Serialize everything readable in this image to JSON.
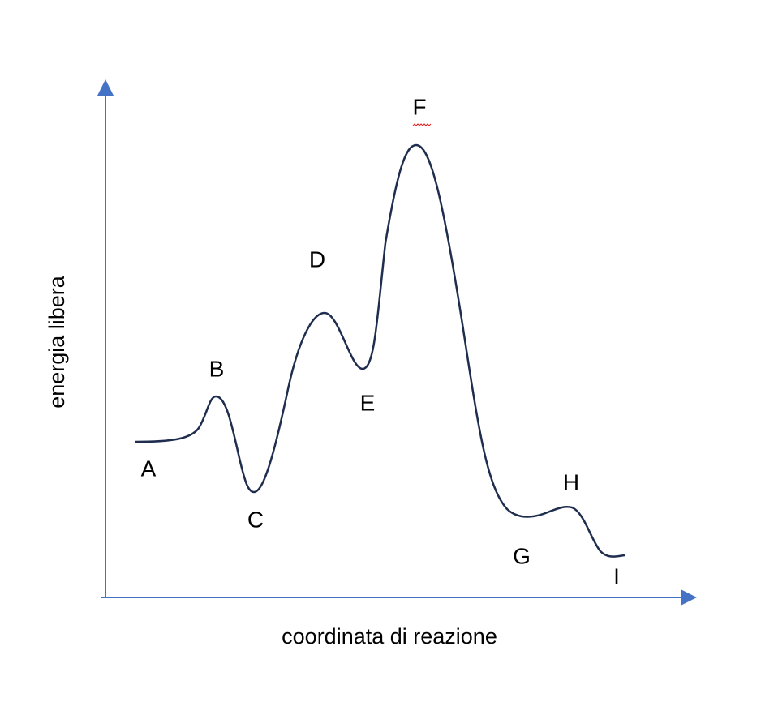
{
  "axes": {
    "y_label": "energia libera",
    "x_label": "coordinata di reazione"
  },
  "points": [
    "A",
    "B",
    "C",
    "D",
    "E",
    "F",
    "G",
    "H",
    "I"
  ]
}
